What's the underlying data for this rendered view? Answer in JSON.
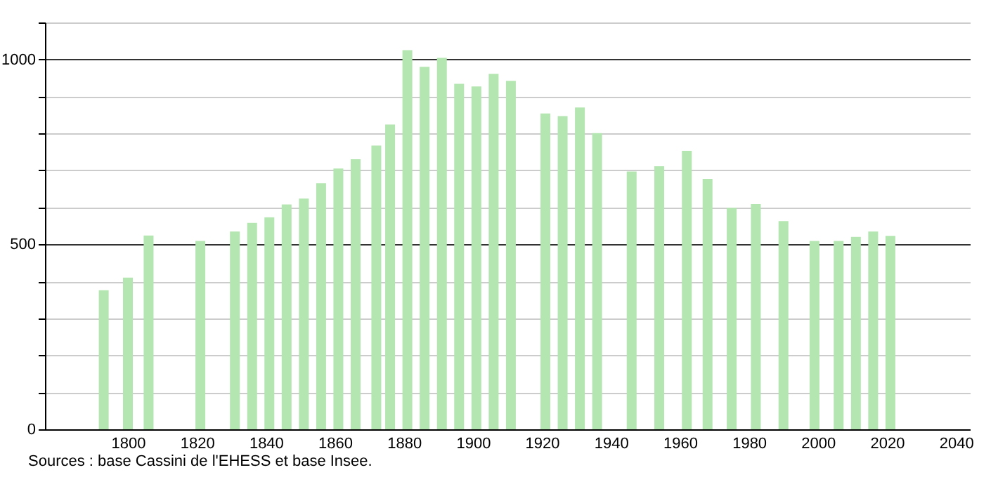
{
  "chart_data": {
    "type": "bar",
    "x": [
      1793,
      1800,
      1806,
      1821,
      1831,
      1836,
      1841,
      1846,
      1851,
      1856,
      1861,
      1866,
      1872,
      1876,
      1881,
      1886,
      1891,
      1896,
      1901,
      1906,
      1911,
      1921,
      1926,
      1931,
      1936,
      1946,
      1954,
      1962,
      1968,
      1975,
      1982,
      1990,
      1999,
      2006,
      2011,
      2016,
      2021
    ],
    "values": [
      376,
      410,
      524,
      509,
      535,
      558,
      573,
      608,
      624,
      665,
      705,
      730,
      767,
      824,
      1025,
      980,
      1004,
      934,
      927,
      961,
      942,
      854,
      847,
      870,
      801,
      697,
      711,
      753,
      677,
      599,
      609,
      563,
      509,
      509,
      520,
      535,
      523
    ],
    "color": "#b3e6b0",
    "xlim": [
      1778,
      2042
    ],
    "xticks": [
      1800,
      1820,
      1840,
      1860,
      1880,
      1900,
      1920,
      1940,
      1960,
      1980,
      2000,
      2020,
      2040
    ],
    "ylim": [
      0,
      1100
    ],
    "yticks": [
      0,
      {
        "value": 100,
        "label": null
      },
      {
        "value": 200,
        "label": null
      },
      {
        "value": 300,
        "label": null
      },
      {
        "value": 400,
        "label": null
      },
      500,
      {
        "value": 600,
        "label": null
      },
      {
        "value": 700,
        "label": null
      },
      {
        "value": 800,
        "label": null
      },
      {
        "value": 900,
        "label": null
      },
      1000,
      {
        "value": 1100,
        "label": null
      }
    ],
    "grid": "y",
    "annotations": [
      "Sources : base Cassini de l'EHESS et base Insee."
    ]
  }
}
